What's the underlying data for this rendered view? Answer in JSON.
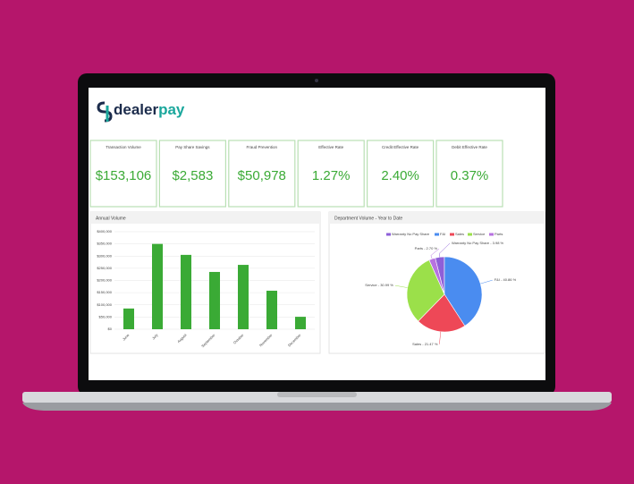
{
  "brand": {
    "prefix": "dealer",
    "suffix": "pay"
  },
  "cards": [
    {
      "label": "Transaction Volume",
      "value": "$153,106"
    },
    {
      "label": "Pay Share Savings",
      "value": "$2,583"
    },
    {
      "label": "Fraud Prevention",
      "value": "$50,978"
    },
    {
      "label": "Effective Rate",
      "value": "1.27%"
    },
    {
      "label": "Credit Effective Rate",
      "value": "2.40%"
    },
    {
      "label": "Debit Effective Rate",
      "value": "0.37%"
    }
  ],
  "chart_data": [
    {
      "type": "bar",
      "title": "Annual Volume",
      "categories": [
        "June",
        "July",
        "August",
        "September",
        "October",
        "November",
        "December"
      ],
      "values": [
        85000,
        350000,
        305000,
        235000,
        264000,
        158000,
        51000
      ],
      "color": "#3aaa35",
      "ylim": [
        0,
        400000
      ],
      "yticks": [
        {
          "value": 0,
          "label": "$0"
        },
        {
          "value": 50000,
          "label": "$50,000"
        },
        {
          "value": 100000,
          "label": "$100,000"
        },
        {
          "value": 150000,
          "label": "$150,000"
        },
        {
          "value": 200000,
          "label": "$200,000"
        },
        {
          "value": 250000,
          "label": "$250,000"
        },
        {
          "value": 300000,
          "label": "$300,000"
        },
        {
          "value": 350000,
          "label": "$350,000"
        },
        {
          "value": 400000,
          "label": "$400,000"
        }
      ],
      "grid": true
    },
    {
      "type": "pie",
      "title": "Department Volume - Year to Date",
      "categories": [
        "Warranty No Pay Share",
        "F&I",
        "Sales",
        "Service",
        "Parts"
      ],
      "values": [
        3.98,
        40.86,
        21.47,
        30.99,
        2.7
      ],
      "value_labels": [
        "Warranty No Pay Share - 3.98 %",
        "F&I - 40.86 %",
        "Sales - 21.47 %",
        "Service - 30.99 %",
        "Parts - 2.70 %"
      ],
      "colors": [
        "#8e5fd8",
        "#4a8cf0",
        "#ee4857",
        "#9be04a",
        "#b772e0"
      ]
    }
  ]
}
